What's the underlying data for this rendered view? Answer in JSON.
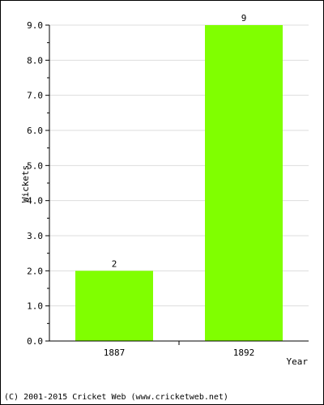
{
  "chart_data": {
    "type": "bar",
    "categories": [
      "1887",
      "1892"
    ],
    "values": [
      2,
      9
    ],
    "data_labels": [
      "2",
      "9"
    ],
    "title": "",
    "xlabel": "Year",
    "ylabel": "Wickets",
    "ylim": [
      0,
      9
    ],
    "yticks": [
      "0.0",
      "1.0",
      "2.0",
      "3.0",
      "4.0",
      "5.0",
      "6.0",
      "7.0",
      "8.0",
      "9.0"
    ],
    "grid": true,
    "legend": "none",
    "bar_color": "#80ff00",
    "grid_color": "#dddddd"
  },
  "footer": {
    "copyright": "(C) 2001-2015 Cricket Web (www.cricketweb.net)"
  }
}
